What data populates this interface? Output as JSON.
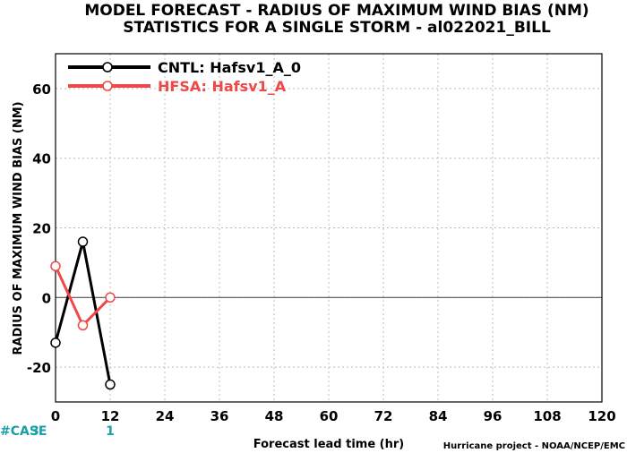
{
  "title_line1": "MODEL FORECAST - RADIUS OF MAXIMUM WIND BIAS (NM)",
  "title_line2": "STATISTICS FOR A SINGLE STORM - al022021_BILL",
  "credit": "Hurricane project - NOAA/NCEP/EMC",
  "case_label": "#CASE",
  "colors": {
    "cntl": "#000000",
    "hfsa": "#f04848",
    "case": "#1aa0a8",
    "grid": "#bbbbbb"
  },
  "chart_data": {
    "type": "line",
    "xlabel": "Forecast lead time (hr)",
    "ylabel": "RADIUS OF MAXIMUM WIND BIAS (NM)",
    "xlim": [
      0,
      120
    ],
    "ylim": [
      -30,
      70
    ],
    "xticks": [
      0,
      12,
      24,
      36,
      48,
      60,
      72,
      84,
      96,
      108,
      120
    ],
    "yticks": [
      -20,
      0,
      20,
      40,
      60
    ],
    "grid": true,
    "legend_position": "top-left",
    "series": [
      {
        "name": "CNTL: Hafsv1_A_0",
        "x": [
          0,
          6,
          12
        ],
        "y": [
          -13,
          16,
          -25
        ],
        "color": "#000000"
      },
      {
        "name": "HFSA: Hafsv1_A",
        "x": [
          0,
          6,
          12
        ],
        "y": [
          9,
          -8,
          0
        ],
        "color": "#f04848"
      }
    ],
    "cases": [
      {
        "x": 0,
        "label": "3"
      },
      {
        "x": 12,
        "label": "1"
      }
    ]
  }
}
